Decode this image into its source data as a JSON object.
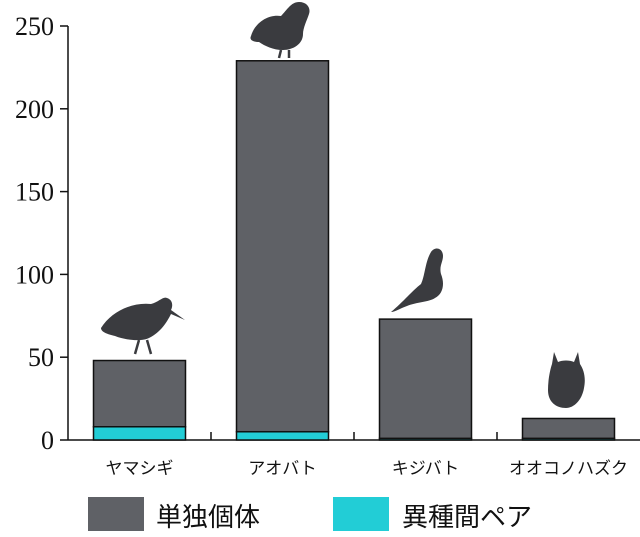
{
  "chart_data": {
    "type": "bar",
    "stacked": true,
    "categories": [
      "ヤマシギ",
      "アオバト",
      "キジバト",
      "オオコノハズク"
    ],
    "series": [
      {
        "name": "異種間ペア",
        "color": "#22cdd6",
        "values": [
          8,
          5,
          1,
          1
        ]
      },
      {
        "name": "単独個体",
        "color": "#5f6166",
        "values": [
          40,
          224,
          72,
          12
        ]
      }
    ],
    "ylim": [
      0,
      250
    ],
    "yticks": [
      "0",
      "50",
      "100",
      "150",
      "200",
      "250"
    ],
    "xlabel": "",
    "ylabel": "",
    "legend": {
      "position": "bottom",
      "items": [
        {
          "label": "単独個体",
          "color": "#5f6166"
        },
        {
          "label": "異種間ペア",
          "color": "#22cdd6"
        }
      ]
    },
    "icons": [
      "woodcock-silhouette-icon",
      "pigeon-silhouette-icon",
      "dove-silhouette-icon",
      "owl-silhouette-icon"
    ],
    "grid": false
  }
}
